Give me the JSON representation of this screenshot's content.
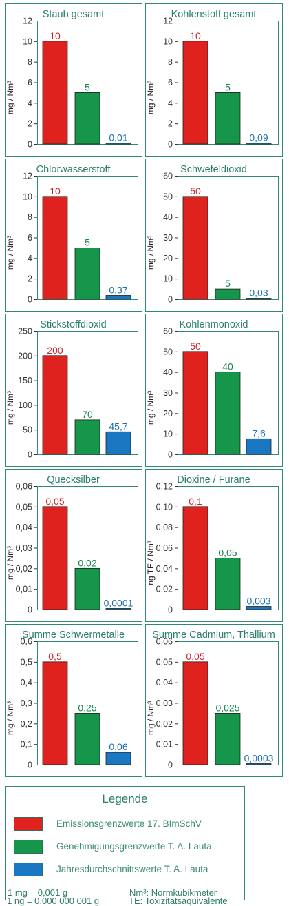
{
  "chart_data": [
    {
      "type": "bar",
      "title": "Staub gesamt",
      "ylabel": "mg / Nm³",
      "ylim": [
        0,
        12
      ],
      "yticks": [
        0,
        2,
        4,
        6,
        8,
        10,
        12
      ],
      "values": [
        10,
        5,
        0.01
      ],
      "labels": [
        "10",
        "5",
        "0,01"
      ]
    },
    {
      "type": "bar",
      "title": "Kohlenstoff gesamt",
      "ylabel": "mg / Nm³",
      "ylim": [
        0,
        12
      ],
      "yticks": [
        0,
        2,
        4,
        6,
        8,
        10,
        12
      ],
      "values": [
        10,
        5,
        0.09
      ],
      "labels": [
        "10",
        "5",
        "0,09"
      ]
    },
    {
      "type": "bar",
      "title": "Chlorwasserstoff",
      "ylabel": "mg / Nm³",
      "ylim": [
        0,
        12
      ],
      "yticks": [
        0,
        2,
        4,
        6,
        8,
        10,
        12
      ],
      "values": [
        10,
        5,
        0.37
      ],
      "labels": [
        "10",
        "5",
        "0,37"
      ]
    },
    {
      "type": "bar",
      "title": "Schwefeldioxid",
      "ylabel": "mg / Nm³",
      "ylim": [
        0,
        60
      ],
      "yticks": [
        0,
        10,
        20,
        30,
        40,
        50,
        60
      ],
      "values": [
        50,
        5,
        0.03
      ],
      "labels": [
        "50",
        "5",
        "0,03"
      ]
    },
    {
      "type": "bar",
      "title": "Stickstoffdioxid",
      "ylabel": "mg / Nm³",
      "ylim": [
        0,
        250
      ],
      "yticks": [
        0,
        50,
        100,
        150,
        200,
        250
      ],
      "values": [
        200,
        70,
        45.7
      ],
      "labels": [
        "200",
        "70",
        "45,7"
      ]
    },
    {
      "type": "bar",
      "title": "Kohlenmonoxid",
      "ylabel": "mg / Nm³",
      "ylim": [
        0,
        60
      ],
      "yticks": [
        0,
        10,
        20,
        30,
        40,
        50,
        60
      ],
      "values": [
        50,
        40,
        7.6
      ],
      "labels": [
        "50",
        "40",
        "7,6"
      ]
    },
    {
      "type": "bar",
      "title": "Quecksilber",
      "ylabel": "mg / Nm³",
      "ylim": [
        0,
        0.06
      ],
      "yticks": [
        0,
        0.01,
        0.02,
        0.03,
        0.04,
        0.05,
        0.06
      ],
      "ytick_labels": [
        "0",
        "0,01",
        "0,02",
        "0,03",
        "0,04",
        "0,05",
        "0,06"
      ],
      "values": [
        0.05,
        0.02,
        0.0001
      ],
      "labels": [
        "0,05",
        "0,02",
        "0,0001"
      ]
    },
    {
      "type": "bar",
      "title": "Dioxine / Furane",
      "ylabel": "ng TE / Nm³",
      "ylim": [
        0,
        0.12
      ],
      "yticks": [
        0,
        0.02,
        0.04,
        0.06,
        0.08,
        0.1,
        0.12
      ],
      "ytick_labels": [
        "0",
        "0,02",
        "0,04",
        "0,06",
        "0,08",
        "0,10",
        "0,12"
      ],
      "values": [
        0.1,
        0.05,
        0.003
      ],
      "labels": [
        "0,1",
        "0,05",
        "0,003"
      ]
    },
    {
      "type": "bar",
      "title": "Summe Schwermetalle",
      "ylabel": "mg / Nm³",
      "ylim": [
        0,
        0.6
      ],
      "yticks": [
        0,
        0.1,
        0.2,
        0.3,
        0.4,
        0.5,
        0.6
      ],
      "ytick_labels": [
        "0",
        "0,1",
        "0,2",
        "0,3",
        "0,4",
        "0,5",
        "0,6"
      ],
      "values": [
        0.5,
        0.25,
        0.06
      ],
      "labels": [
        "0,5",
        "0,25",
        "0,06"
      ]
    },
    {
      "type": "bar",
      "title": "Summe Cadmium, Thallium",
      "ylabel": "mg / Nm³",
      "ylim": [
        0,
        0.06
      ],
      "yticks": [
        0,
        0.01,
        0.02,
        0.03,
        0.04,
        0.05,
        0.06
      ],
      "ytick_labels": [
        "0",
        "0,01",
        "0,02",
        "0,03",
        "0,04",
        "0,05",
        "0,06"
      ],
      "values": [
        0.05,
        0.025,
        0.0003
      ],
      "labels": [
        "0,05",
        "0,025",
        "0,0003"
      ]
    }
  ],
  "series_colors": [
    "#e0221f",
    "#16964a",
    "#1a78c2"
  ],
  "label_colors": [
    "#c8232a",
    "#17844b",
    "#1a6fb5"
  ],
  "colors": {
    "frame": "#2f8a74",
    "title": "#2a7f6c",
    "axis": "#333333"
  },
  "legend": {
    "title": "Legende",
    "items": [
      {
        "label": "Emissionsgrenzwerte 17. BImSchV",
        "color": "#e0221f"
      },
      {
        "label": "Genehmigungsgrenzwerte T. A. Lauta",
        "color": "#16964a"
      },
      {
        "label": "Jahresdurchschnittswerte T. A. Lauta",
        "color": "#1a78c2"
      }
    ],
    "notes": {
      "mg": "1 mg = 0,001 g",
      "ng": "1  ng = 0,000 000 001 g",
      "nm3": "Nm³: Normkubikmeter",
      "te": "TE:  Toxizitätsäquivalente"
    }
  }
}
